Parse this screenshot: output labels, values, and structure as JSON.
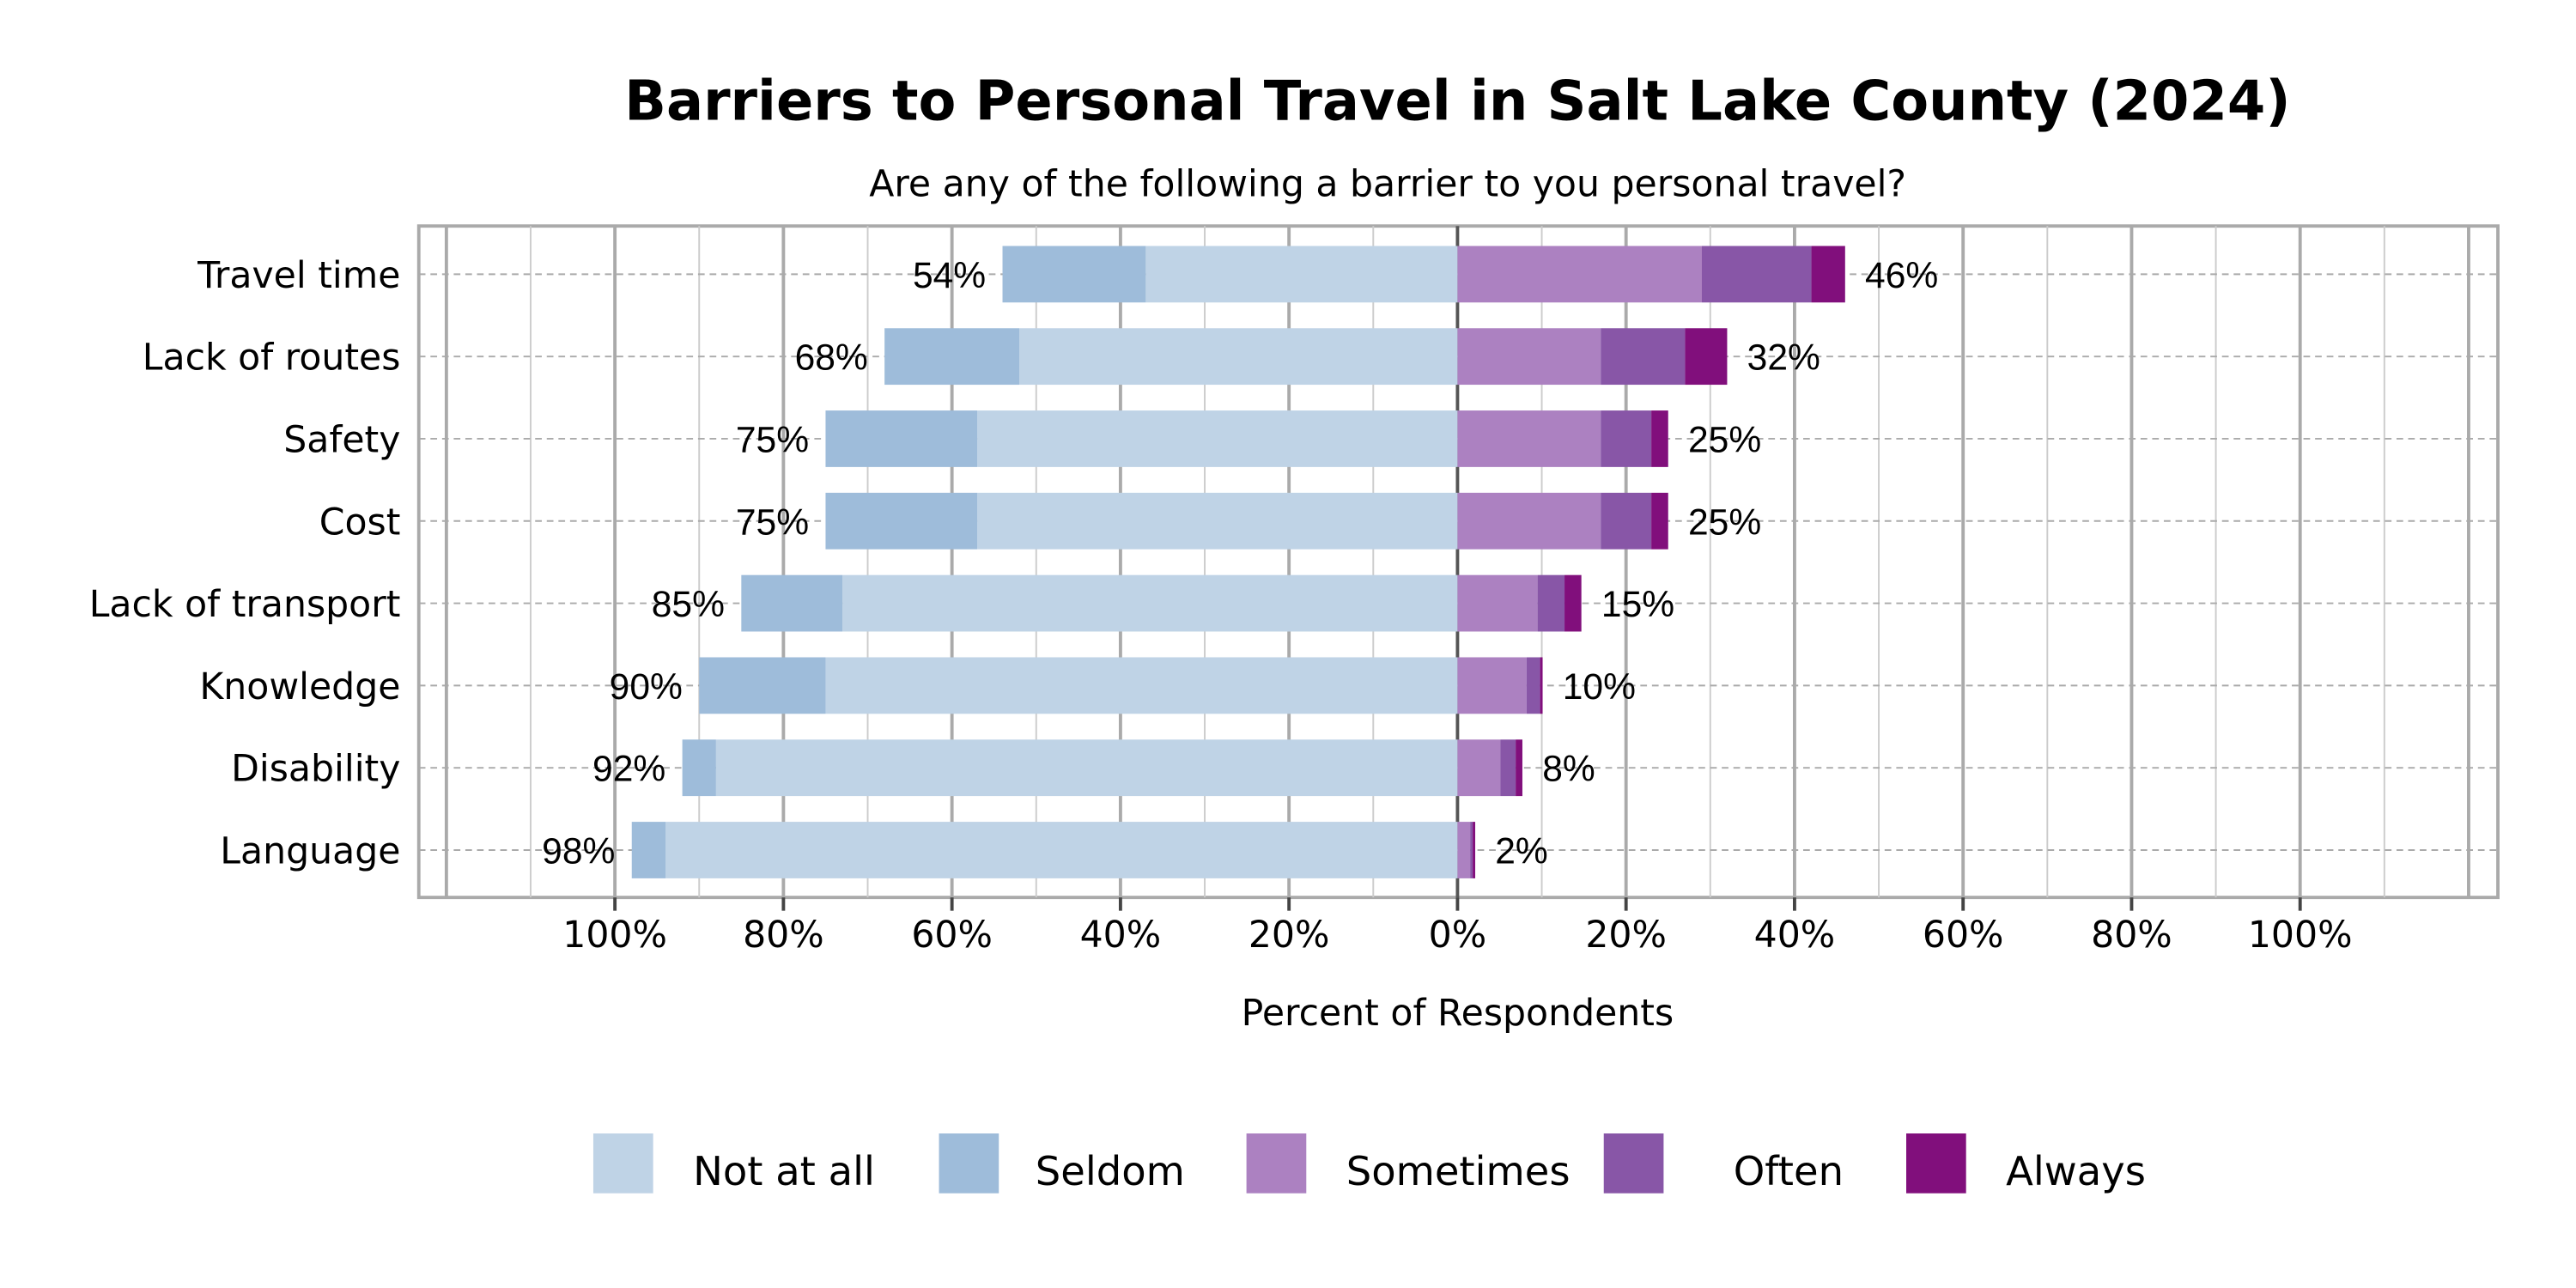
{
  "chart_data": {
    "type": "bar",
    "orientation": "horizontal",
    "stacking": "diverging",
    "title": "Barriers to Personal Travel in Salt Lake County (2024)",
    "subtitle": "Are any of the following a barrier to you personal travel?",
    "xlabel": "Percent of Respondents",
    "ylabel": "",
    "xlim": [
      -123,
      123
    ],
    "x_ticks": [
      "100%",
      "80%",
      "60%",
      "40%",
      "20%",
      "0%",
      "20%",
      "40%",
      "60%",
      "80%",
      "100%"
    ],
    "x_tick_values": [
      -100,
      -80,
      -60,
      -40,
      -20,
      0,
      20,
      40,
      60,
      80,
      100
    ],
    "grid": true,
    "legend_position": "bottom",
    "categories": [
      "Travel time",
      "Lack of routes",
      "Safety",
      "Cost",
      "Lack of transport",
      "Knowledge",
      "Disability",
      "Language"
    ],
    "series": [
      {
        "name": "Not at all",
        "side": "left",
        "color": "#bfd3e6",
        "values": [
          37,
          52,
          57,
          57,
          73,
          75,
          88,
          94
        ]
      },
      {
        "name": "Seldom",
        "side": "left",
        "color": "#9ebcda",
        "values": [
          17,
          16,
          18,
          18,
          12,
          15,
          4,
          4
        ]
      },
      {
        "name": "Sometimes",
        "side": "right",
        "color": "#ac81c1",
        "values": [
          29,
          17,
          17,
          17,
          9.5,
          8.2,
          5.1,
          1.5
        ]
      },
      {
        "name": "Often",
        "side": "right",
        "color": "#8856a7",
        "values": [
          13,
          10,
          6,
          6,
          3.2,
          1.6,
          1.8,
          0.3
        ]
      },
      {
        "name": "Always",
        "side": "right",
        "color": "#810f7c",
        "values": [
          4,
          5,
          2,
          2,
          2,
          0.3,
          0.8,
          0.3
        ]
      }
    ],
    "left_totals": [
      "54%",
      "68%",
      "75%",
      "75%",
      "85%",
      "90%",
      "92%",
      "98%"
    ],
    "right_totals": [
      "46%",
      "32%",
      "25%",
      "25%",
      "15%",
      "10%",
      "8%",
      "2%"
    ],
    "legend": [
      "Not at all",
      "Seldom",
      "Sometimes",
      "Often",
      "Always"
    ]
  }
}
